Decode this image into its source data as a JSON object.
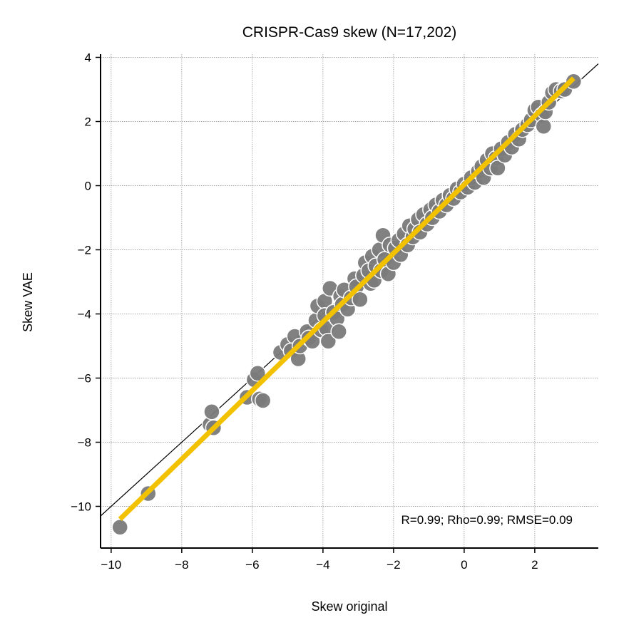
{
  "chart_data": {
    "type": "scatter",
    "title": "CRISPR-Cas9 skew (N=17,202)",
    "xlabel": "Skew original",
    "ylabel": "Skew VAE",
    "xlim": [
      -10.3,
      3.8
    ],
    "ylim": [
      -11.3,
      4.1
    ],
    "xticks": [
      -10,
      -8,
      -6,
      -4,
      -2,
      0,
      2
    ],
    "yticks": [
      -10,
      -8,
      -6,
      -4,
      -2,
      0,
      2,
      4
    ],
    "xtick_labels": [
      "−10",
      "−8",
      "−6",
      "−4",
      "−2",
      "0",
      "2"
    ],
    "ytick_labels": [
      "−10",
      "−8",
      "−6",
      "−4",
      "−2",
      "0",
      "2",
      "4"
    ],
    "grid": true,
    "annotation": "R=0.99; Rho=0.99; RMSE=0.09",
    "colors": {
      "points": "#7a7a7a",
      "point_edge": "#ffffff",
      "fit_line": "#f2c200",
      "identity_line": "#000000"
    },
    "identity_line": {
      "x": [
        -10.3,
        3.8
      ],
      "y": [
        -10.3,
        3.8
      ]
    },
    "fit_line": {
      "x": [
        -9.75,
        3.1
      ],
      "y": [
        -10.4,
        3.35
      ]
    },
    "series": [
      {
        "values": [
          [
            -9.75,
            -10.65
          ],
          [
            -8.95,
            -9.6
          ],
          [
            -7.2,
            -7.45
          ],
          [
            -7.15,
            -7.05
          ],
          [
            -7.1,
            -7.55
          ],
          [
            -6.15,
            -6.6
          ],
          [
            -5.95,
            -6.05
          ],
          [
            -5.85,
            -5.85
          ],
          [
            -5.8,
            -6.65
          ],
          [
            -5.7,
            -6.7
          ],
          [
            -5.2,
            -5.2
          ],
          [
            -5.0,
            -4.95
          ],
          [
            -4.8,
            -4.7
          ],
          [
            -4.9,
            -5.15
          ],
          [
            -4.7,
            -5.4
          ],
          [
            -4.65,
            -5.0
          ],
          [
            -4.45,
            -4.55
          ],
          [
            -4.4,
            -4.75
          ],
          [
            -4.3,
            -4.85
          ],
          [
            -4.2,
            -4.2
          ],
          [
            -4.15,
            -3.75
          ],
          [
            -4.05,
            -4.5
          ],
          [
            -3.95,
            -3.6
          ],
          [
            -3.95,
            -4.05
          ],
          [
            -3.9,
            -4.45
          ],
          [
            -3.8,
            -3.2
          ],
          [
            -3.85,
            -4.85
          ],
          [
            -3.7,
            -3.95
          ],
          [
            -3.6,
            -4.15
          ],
          [
            -3.55,
            -4.55
          ],
          [
            -3.5,
            -3.45
          ],
          [
            -3.45,
            -3.7
          ],
          [
            -3.4,
            -3.25
          ],
          [
            -3.3,
            -3.85
          ],
          [
            -3.2,
            -3.5
          ],
          [
            -3.1,
            -2.9
          ],
          [
            -3.05,
            -3.15
          ],
          [
            -2.95,
            -3.55
          ],
          [
            -2.85,
            -2.8
          ],
          [
            -2.8,
            -2.4
          ],
          [
            -2.7,
            -2.65
          ],
          [
            -2.65,
            -3.05
          ],
          [
            -2.6,
            -2.2
          ],
          [
            -2.55,
            -2.95
          ],
          [
            -2.5,
            -2.5
          ],
          [
            -2.4,
            -2.0
          ],
          [
            -2.35,
            -2.65
          ],
          [
            -2.3,
            -1.55
          ],
          [
            -2.25,
            -2.3
          ],
          [
            -2.15,
            -2.75
          ],
          [
            -2.1,
            -1.85
          ],
          [
            -2.0,
            -2.4
          ],
          [
            -1.95,
            -1.95
          ],
          [
            -1.85,
            -1.7
          ],
          [
            -1.8,
            -2.15
          ],
          [
            -1.7,
            -1.5
          ],
          [
            -1.6,
            -1.85
          ],
          [
            -1.55,
            -1.25
          ],
          [
            -1.45,
            -1.6
          ],
          [
            -1.4,
            -1.35
          ],
          [
            -1.3,
            -1.05
          ],
          [
            -1.25,
            -1.45
          ],
          [
            -1.15,
            -0.9
          ],
          [
            -1.05,
            -1.2
          ],
          [
            -0.95,
            -0.75
          ],
          [
            -0.9,
            -1.0
          ],
          [
            -0.8,
            -0.6
          ],
          [
            -0.7,
            -0.8
          ],
          [
            -0.6,
            -0.45
          ],
          [
            -0.5,
            -0.6
          ],
          [
            -0.4,
            -0.3
          ],
          [
            -0.3,
            -0.4
          ],
          [
            -0.2,
            -0.1
          ],
          [
            -0.1,
            -0.2
          ],
          [
            0.0,
            0.05
          ],
          [
            0.1,
            -0.05
          ],
          [
            0.2,
            0.25
          ],
          [
            0.3,
            0.1
          ],
          [
            0.4,
            0.45
          ],
          [
            0.5,
            0.6
          ],
          [
            0.55,
            0.25
          ],
          [
            0.65,
            0.8
          ],
          [
            0.75,
            0.55
          ],
          [
            0.8,
            1.0
          ],
          [
            0.9,
            0.85
          ],
          [
            0.95,
            0.55
          ],
          [
            1.05,
            1.15
          ],
          [
            1.15,
            0.95
          ],
          [
            1.25,
            1.35
          ],
          [
            1.35,
            1.2
          ],
          [
            1.45,
            1.6
          ],
          [
            1.55,
            1.45
          ],
          [
            1.65,
            1.75
          ],
          [
            1.8,
            1.9
          ],
          [
            1.9,
            2.05
          ],
          [
            2.0,
            2.35
          ],
          [
            2.1,
            2.45
          ],
          [
            2.2,
            2.2
          ],
          [
            2.25,
            1.85
          ],
          [
            2.3,
            2.3
          ],
          [
            2.4,
            2.6
          ],
          [
            2.5,
            2.9
          ],
          [
            2.6,
            3.0
          ],
          [
            2.75,
            2.95
          ],
          [
            2.85,
            3.0
          ],
          [
            3.1,
            3.25
          ]
        ]
      }
    ]
  }
}
